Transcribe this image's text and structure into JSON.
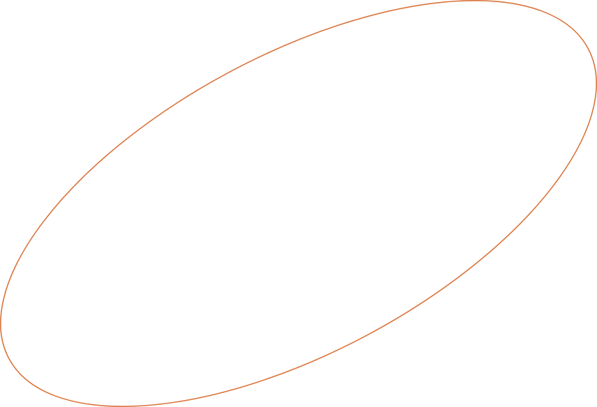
{
  "shape": {
    "kind": "ellipse-outline",
    "stroke_color": "#d9733a",
    "fill": "none"
  }
}
